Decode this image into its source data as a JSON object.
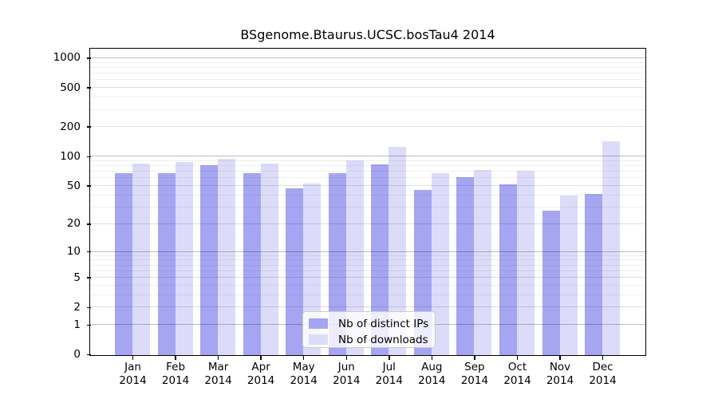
{
  "chart_data": {
    "type": "bar",
    "title": "BSgenome.Btaurus.UCSC.bosTau4 2014",
    "x_months": [
      "Jan",
      "Feb",
      "Mar",
      "Apr",
      "May",
      "Jun",
      "Jul",
      "Aug",
      "Sep",
      "Oct",
      "Nov",
      "Dec"
    ],
    "year": "2014",
    "categories": [
      "Jan 2014",
      "Feb 2014",
      "Mar 2014",
      "Apr 2014",
      "May 2014",
      "Jun 2014",
      "Jul 2014",
      "Aug 2014",
      "Sep 2014",
      "Oct 2014",
      "Nov 2014",
      "Dec 2014"
    ],
    "series": [
      {
        "name": "Nb of distinct IPs",
        "key": "distinct-ips",
        "color": "#a5a5f2",
        "values": [
          68,
          68,
          83,
          68,
          48,
          68,
          84,
          46,
          62,
          52,
          28,
          42
        ]
      },
      {
        "name": "Nb of downloads",
        "key": "downloads",
        "color": "#dcdcfa",
        "values": [
          85,
          89,
          95,
          86,
          53,
          93,
          128,
          68,
          73,
          72,
          40,
          144
        ]
      }
    ],
    "y_scale": "log1p",
    "y_ticks": [
      0,
      1,
      2,
      5,
      10,
      20,
      50,
      100,
      200,
      500,
      1000
    ],
    "y_minor_gridlines": [
      3,
      4,
      6,
      7,
      8,
      9,
      30,
      40,
      60,
      70,
      80,
      90,
      300,
      400,
      600,
      700,
      800,
      900
    ],
    "ylim": [
      0,
      1290
    ],
    "grid": true,
    "legend": {
      "position": "bottom-center",
      "entries": [
        "Nb of distinct IPs",
        "Nb of downloads"
      ]
    }
  },
  "axis_colors": {
    "spine": "#000000",
    "grid_major_pow10": "rgba(0,0,0,0.25)",
    "grid_major": "rgba(0,0,0,0.12)",
    "grid_minor": "rgba(0,0,0,0.06)"
  }
}
